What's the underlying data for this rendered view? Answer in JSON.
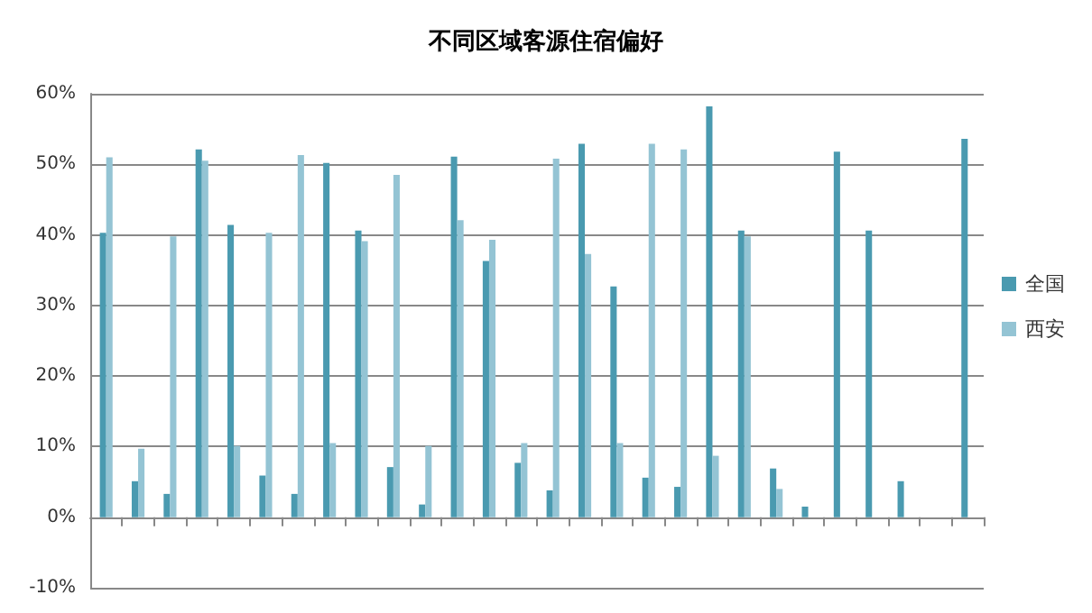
{
  "chart_data": {
    "type": "bar",
    "title": "不同区域客源住宿偏好",
    "categories": [
      null,
      null,
      null,
      null,
      null,
      null,
      null,
      null,
      null,
      null,
      null,
      null,
      null,
      null,
      null,
      null,
      null,
      null,
      null,
      null,
      null,
      null,
      null,
      null,
      null,
      null,
      null,
      null
    ],
    "series": [
      {
        "name": "全国",
        "color": "#4a9ab0",
        "values": [
          40.3,
          5.1,
          3.3,
          52.1,
          41.4,
          5.9,
          3.3,
          50.2,
          40.6,
          7.1,
          1.8,
          51.1,
          36.3,
          7.7,
          3.8,
          52.9,
          32.7,
          5.6,
          4.3,
          58.2,
          40.6,
          6.9,
          1.5,
          51.8,
          40.6,
          5.1,
          null,
          53.6
        ]
      },
      {
        "name": "西安",
        "color": "#94c4d4",
        "values": [
          51.0,
          9.7,
          39.8,
          50.5,
          10.1,
          40.3,
          51.3,
          10.5,
          39.1,
          48.5,
          10.1,
          42.1,
          39.3,
          10.5,
          50.8,
          37.3,
          10.5,
          52.9,
          52.1,
          8.7,
          39.8,
          4,
          null,
          null,
          null,
          null,
          null,
          null
        ]
      }
    ],
    "ylim": [
      -10,
      60
    ],
    "yticks": [
      {
        "value": -10,
        "label": "-10%"
      },
      {
        "value": 0,
        "label": "0%"
      },
      {
        "value": 10,
        "label": "10%"
      },
      {
        "value": 20,
        "label": "20%"
      },
      {
        "value": 30,
        "label": "30%"
      },
      {
        "value": 40,
        "label": "40%"
      },
      {
        "value": 50,
        "label": "50%"
      },
      {
        "value": 60,
        "label": "60%"
      }
    ],
    "grid": "y",
    "legend": "right"
  }
}
